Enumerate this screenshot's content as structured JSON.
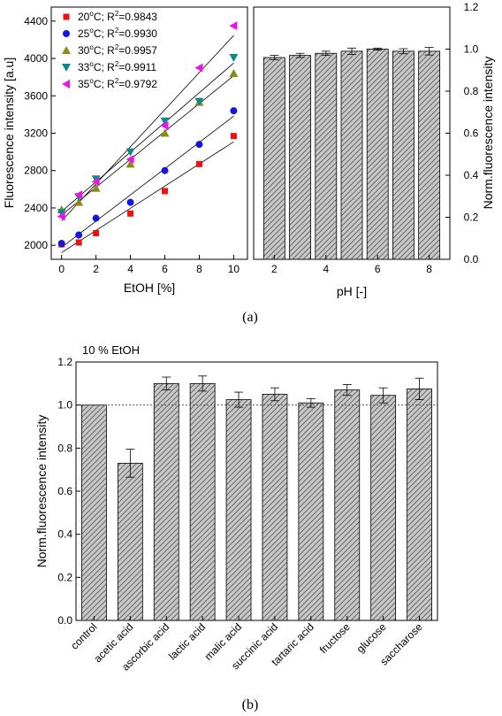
{
  "panel_a_caption": "(a)",
  "panel_b_caption": "(b)",
  "chart_data": [
    {
      "type": "scatter",
      "xlabel": "EtOH [%]",
      "ylabel": "Fluorescence intensity [a.u]",
      "xlim": [
        -0.6,
        10.8
      ],
      "ylim": [
        1850,
        4550
      ],
      "xticks": [
        0,
        2,
        4,
        6,
        8,
        10
      ],
      "yticks": [
        2000,
        2400,
        2800,
        3200,
        3600,
        4000,
        4400
      ],
      "legend_position": "top-left",
      "x": [
        0,
        1,
        2,
        4,
        6,
        8,
        10
      ],
      "series": [
        {
          "name": "20°C; R²=0.9843",
          "name_main": "20",
          "name_rest": "C; R",
          "r2_value": "=0.9843",
          "marker": "square",
          "color": "#ee1111",
          "values": [
            2010,
            2030,
            2130,
            2340,
            2580,
            2870,
            3170
          ]
        },
        {
          "name": "25°C; R²=0.9930",
          "name_main": "25",
          "name_rest": "C; R",
          "r2_value": "=0.9930",
          "marker": "circle",
          "color": "#1515dd",
          "values": [
            2020,
            2110,
            2290,
            2460,
            2800,
            3080,
            3440
          ]
        },
        {
          "name": "30°C; R²=0.9957",
          "name_main": "30",
          "name_rest": "C; R",
          "r2_value": "=0.9957",
          "marker": "triangle-up",
          "color": "#8b8b18",
          "values": [
            2380,
            2460,
            2610,
            2870,
            3200,
            3530,
            3840
          ]
        },
        {
          "name": "33°C; R²=0.9911",
          "name_main": "33",
          "name_rest": "C; R",
          "r2_value": "=0.9911",
          "marker": "triangle-down",
          "color": "#118888",
          "values": [
            2350,
            2520,
            2710,
            3000,
            3330,
            3540,
            4010
          ]
        },
        {
          "name": "35°C; R²=0.9792",
          "name_main": "35",
          "name_rest": "C; R",
          "r2_value": "=0.9792",
          "marker": "triangle-left",
          "color": "#ee11ee",
          "values": [
            2310,
            2540,
            2680,
            2920,
            3280,
            3900,
            4350
          ]
        }
      ]
    },
    {
      "type": "bar",
      "xlabel": "pH [-]",
      "ylabel": "Norm.fluorescence intensity",
      "xlim": [
        1.2,
        8.8
      ],
      "ylim": [
        0,
        1.2
      ],
      "xticks": [
        2,
        4,
        6,
        8
      ],
      "yticks": [
        "0.0",
        "0.2",
        "0.4",
        "0.6",
        "0.8",
        "1.0",
        "1.2"
      ],
      "x": [
        2,
        3,
        4,
        5,
        6,
        7,
        8
      ],
      "values": [
        0.96,
        0.97,
        0.98,
        0.99,
        1.0,
        0.99,
        0.99
      ],
      "errors": [
        0.01,
        0.01,
        0.01,
        0.015,
        0.005,
        0.012,
        0.018
      ]
    },
    {
      "type": "bar",
      "annotation": "10 % EtOH",
      "ylabel": "Norm.fluorescence intensity",
      "ylim": [
        0,
        1.2
      ],
      "yticks": [
        "0.0",
        "0.2",
        "0.4",
        "0.6",
        "0.8",
        "1.0",
        "1.2"
      ],
      "reference_line": 1.0,
      "categories": [
        "control",
        "acetic acid",
        "ascorbic acid",
        "lactic acid",
        "malic acid",
        "succinic acid",
        "tartaric acid",
        "fructose",
        "glucose",
        "saccharose"
      ],
      "values": [
        1.0,
        0.73,
        1.1,
        1.1,
        1.025,
        1.05,
        1.01,
        1.07,
        1.045,
        1.075
      ],
      "errors": [
        0.0,
        0.065,
        0.03,
        0.035,
        0.035,
        0.03,
        0.02,
        0.025,
        0.035,
        0.05
      ]
    }
  ]
}
